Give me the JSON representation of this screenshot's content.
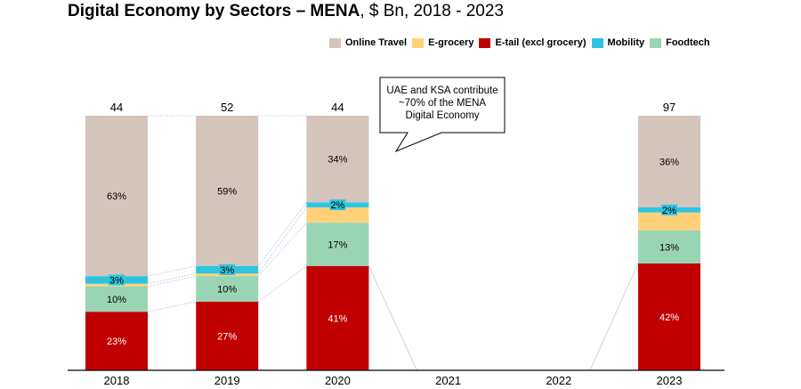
{
  "chart_data": {
    "type": "bar",
    "stacked": true,
    "normalized_percent": true,
    "title_bold": "Digital Economy by Sectors – MENA",
    "title_rest": ", $ Bn, 2018 - 2023",
    "categories": [
      "2018",
      "2019",
      "2020",
      "2021",
      "2022",
      "2023"
    ],
    "totals": [
      44,
      52,
      44,
      null,
      null,
      97
    ],
    "totals_labels": [
      "44",
      "52",
      "44",
      "",
      "",
      "97"
    ],
    "series": [
      {
        "name": "E-tail (excl grocery)",
        "color": "#C00000",
        "values": [
          23,
          27,
          41,
          null,
          null,
          42
        ],
        "labels": [
          "23%",
          "27%",
          "41%",
          "",
          "",
          "42%"
        ],
        "label_color": "#ffffff"
      },
      {
        "name": "Foodtech",
        "color": "#99D5B5",
        "values": [
          10,
          10,
          17,
          null,
          null,
          13
        ],
        "labels": [
          "10%",
          "10%",
          "17%",
          "",
          "",
          "13%"
        ],
        "label_color": "#000000"
      },
      {
        "name": "E-grocery",
        "color": "#FFD27A",
        "values": [
          1,
          1,
          6,
          null,
          null,
          7
        ],
        "labels": [
          "",
          "",
          "",
          "",
          "",
          ""
        ],
        "label_color": "#000000"
      },
      {
        "name": "Mobility",
        "color": "#2EC4E0",
        "values": [
          3,
          3,
          2,
          null,
          null,
          2
        ],
        "labels": [
          "3%",
          "3%",
          "2%",
          "",
          "",
          "2%"
        ],
        "label_color": "#000000"
      },
      {
        "name": "Online Travel",
        "color": "#D3C4BC",
        "values": [
          63,
          59,
          34,
          null,
          null,
          36
        ],
        "labels": [
          "63%",
          "59%",
          "34%",
          "",
          "",
          "36%"
        ],
        "label_color": "#000000"
      }
    ],
    "legend": {
      "position": "top-right",
      "order": [
        "Online Travel",
        "E-grocery",
        "E-tail (excl grocery)",
        "Mobility",
        "Foodtech"
      ]
    },
    "annotation": {
      "lines": [
        "UAE and KSA contribute",
        "~70% of the MENA",
        "Digital Economy"
      ]
    },
    "xlabel": "",
    "ylabel": "",
    "ylim": [
      0,
      100
    ],
    "grid": false
  }
}
